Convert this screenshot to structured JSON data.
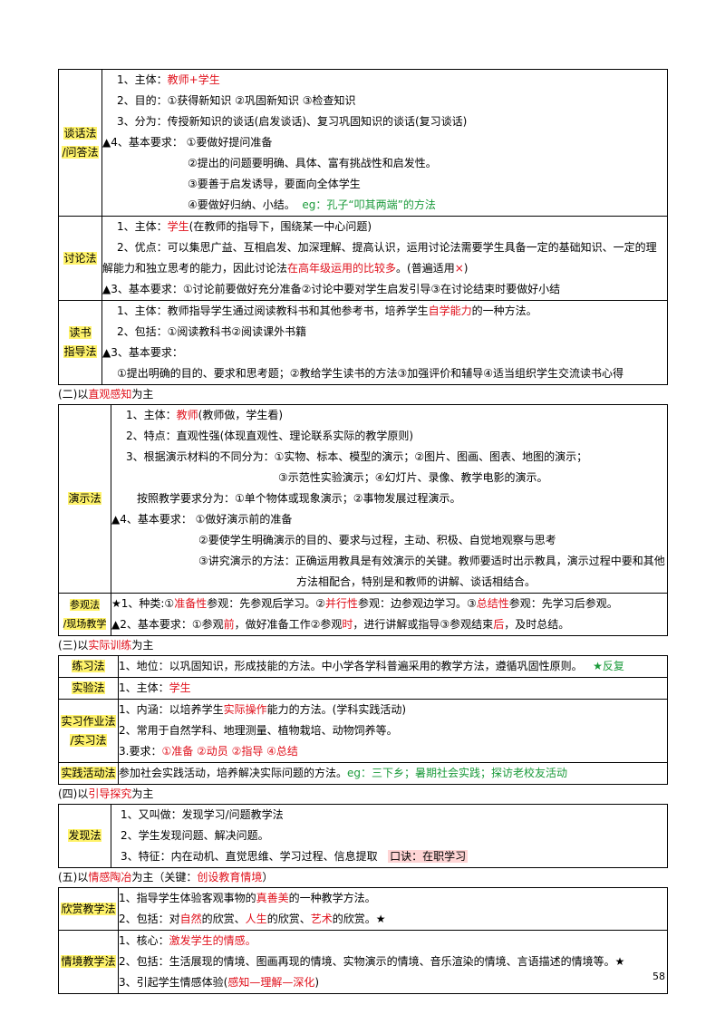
{
  "talk": {
    "label_1": "谈话法",
    "label_2": "/问答法",
    "l1_a": "1、主体：",
    "l1_b": "教师+学生",
    "l2": "2、目的：①获得新知识 ②巩固新知识 ③检查知识",
    "l3": "3、分为：传授新知识的谈话(启发谈话)、复习巩固知识的谈话(复习谈话)",
    "l4": "▲4、基本要求： ①要做好提问准备",
    "l5": "②提出的问题要明确、具体、富有挑战性和启发性。",
    "l6": "③要善于启发诱导，要面向全体学生",
    "l7_a": "④要做好归纳、小结。",
    "l7_b": "eg：孔子“叩其两端”的方法"
  },
  "discuss": {
    "label": "讨论法",
    "l1_a": "1、主体：",
    "l1_b": "学生",
    "l1_c": "(在教师的指导下，围绕某一中心问题)",
    "l2_a": "2、优点：可以集思广益、互相启发、加深理解、提高认识，运用讨论法需要学生具备一定的基础知识、一定的理解能力和独立思考的能力，因此讨论法",
    "l2_b": "在高年级运用的比较多",
    "l2_c": "。(普遍适用",
    "l2_d": "×",
    "l2_e": ")",
    "l3": "▲3、基本要求：①讨论前要做好充分准备②讨论中要对学生启发引导③在讨论结束时要做好小结"
  },
  "reading": {
    "label_1": "读书",
    "label_2": "指导法",
    "l1_a": "1、主体：教师指导学生通过阅读教科书和其他参考书，培养学生",
    "l1_b": "自学能力",
    "l1_c": "的一种方法。",
    "l2": "2、包括：①阅读教科书②阅读课外书籍",
    "l3": "▲3、基本要求：",
    "l4": "①提出明确的目的、要求和思考题；②教给学生读书的方法③加强评价和辅导④适当组织学生交流读书心得"
  },
  "sec2": {
    "a": "(二)以",
    "b": "直观感知",
    "c": "为主"
  },
  "demo": {
    "label": "演示法",
    "l1_a": "1、主体：",
    "l1_b": "教师",
    "l1_c": "(教师做，学生看)",
    "l2": "2、特点：直观性强(体现直观性、理论联系实际的教学原则)",
    "l3": "3、根据演示材料的不同分为：①实物、标本、模型的演示；②图片、图画、图表、地图的演示；",
    "l4": "③示范性实验演示；④幻灯片、录像、教学电影的演示。",
    "l5": "按照教学要求分为：①单个物体或现象演示；②事物发展过程演示。",
    "l6": "▲4、基本要求： ①做好演示前的准备",
    "l7": "②要使学生明确演示的目的、要求与过程，主动、积极、自觉地观察与思考",
    "l8": "③讲究演示的方法：正确运用教具是有效演示的关键。教师要适时出示教具，演示过程中要和其他",
    "l9": "方法相配合，特别是和教师的讲解、谈话相结合。"
  },
  "visit": {
    "label_1": "参观法",
    "label_2": "/现场教学",
    "l1_a": "★1、种类:①",
    "l1_b": "准备性",
    "l1_c": "参观：先参观后学习。②",
    "l1_d": "并行性",
    "l1_e": "参观：边参观边学习。③",
    "l1_f": "总结性",
    "l1_g": "参观：先学习后参观。",
    "l2_a": "▲2、基本要求：①参观",
    "l2_b": "前",
    "l2_c": "，做好准备工作②参观",
    "l2_d": "时",
    "l2_e": "，进行讲解或指导③参观结束",
    "l2_f": "后",
    "l2_g": "，及时总结。"
  },
  "sec3": {
    "a": "(三)以",
    "b": "实际训练",
    "c": "为主"
  },
  "practice": {
    "label": "练习法",
    "l1": "1、地位：以巩固知识，形成技能的方法。中小学各学科普遍采用的教学方法，遵循巩固性原则。",
    "l1_star": "★反复"
  },
  "experiment": {
    "label": "实验法",
    "l1_a": "1、主体：",
    "l1_b": "学生"
  },
  "internship": {
    "label_1": "实习作业法",
    "label_2": "/实习法",
    "l1_a": "1、内涵：以培养学生",
    "l1_b": "实际操作",
    "l1_c": "能力的方法。(学科实践活动)",
    "l2": "2、常用于自然学科、地理测量、植物栽培、动物饲养等。",
    "l3_a": "3.要求：",
    "l3_b": "①准备 ②动员 ②指导 ④总结"
  },
  "activity": {
    "label": "实践活动法",
    "l1_a": "参加社会实践活动，培养解决实际问题的方法。",
    "l1_b": "eg：三下乡；暑期社会实践；探访老校友活动"
  },
  "sec4": {
    "a": "(四)以",
    "b": "引导探究",
    "c": "为主"
  },
  "discover": {
    "label": "发现法",
    "l1": "1、又叫做：发现学习/问题教学法",
    "l2": "2、学生发现问题、解决问题。",
    "l3_a": "3、特征：内在动机、直觉思维、学习过程、信息提取",
    "l3_b": "口诀：在职学习"
  },
  "sec5": {
    "a": "(五)以",
    "b": "情感陶冶",
    "c": "为主（关键：",
    "d": "创设教育情境",
    "e": "）"
  },
  "appreciate": {
    "label": "欣赏教学法",
    "l1_a": "1、指导学生体验客观事物的",
    "l1_b": "真善美",
    "l1_c": "的一种教学方法。",
    "l2_a": "2、包括：对",
    "l2_b": "自然",
    "l2_c": "的欣赏、",
    "l2_d": "人生",
    "l2_e": "的欣赏、",
    "l2_f": "艺术",
    "l2_g": "的欣赏。★"
  },
  "situation": {
    "label": "情境教学法",
    "l1_a": "1、核心：",
    "l1_b": "激发学生的情感。",
    "l2": "2、包括：生活展现的情境、图画再现的情境、实物演示的情境、音乐渲染的情境、言语描述的情境等。★",
    "l3_a": "3、引起学生情感体验(",
    "l3_b": "感知—理解—深化",
    "l3_c": ")"
  },
  "page_number": "58"
}
